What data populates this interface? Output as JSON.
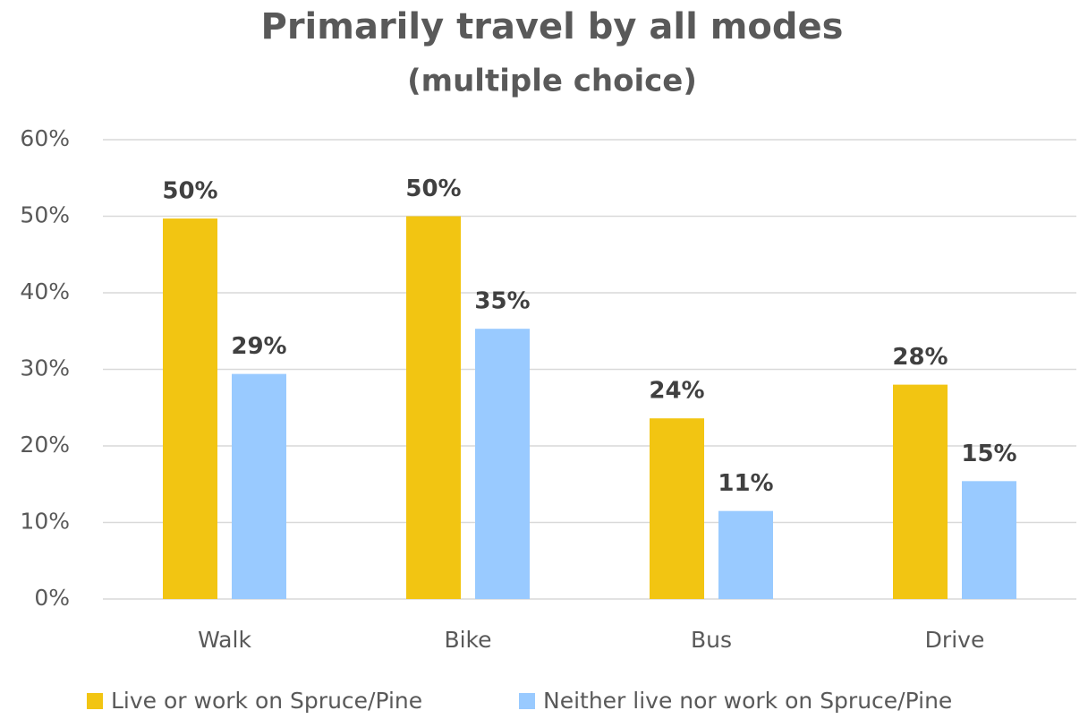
{
  "chart_data": {
    "type": "bar",
    "title": "Primarily travel by all modes",
    "subtitle": "(multiple choice)",
    "categories": [
      "Walk",
      "Bike",
      "Bus",
      "Drive"
    ],
    "series": [
      {
        "name": "Live or work on Spruce/Pine",
        "color": "#f2c512",
        "values": [
          49.7,
          50,
          23.6,
          28
        ],
        "value_labels": [
          "50%",
          "50%",
          "24%",
          "28%"
        ]
      },
      {
        "name": "Neither live nor work on Spruce/Pine",
        "color": "#99caff",
        "values": [
          29.4,
          35.3,
          11.5,
          15.4
        ],
        "value_labels": [
          "29%",
          "35%",
          "11%",
          "15%"
        ]
      }
    ],
    "ylim": [
      0,
      60
    ],
    "yticks": [
      {
        "value": 0,
        "label": "0%"
      },
      {
        "value": 10,
        "label": "10%"
      },
      {
        "value": 20,
        "label": "20%"
      },
      {
        "value": 30,
        "label": "30%"
      },
      {
        "value": 40,
        "label": "40%"
      },
      {
        "value": 50,
        "label": "50%"
      },
      {
        "value": 60,
        "label": "60%"
      }
    ],
    "grid": true,
    "legend": "bottom"
  }
}
